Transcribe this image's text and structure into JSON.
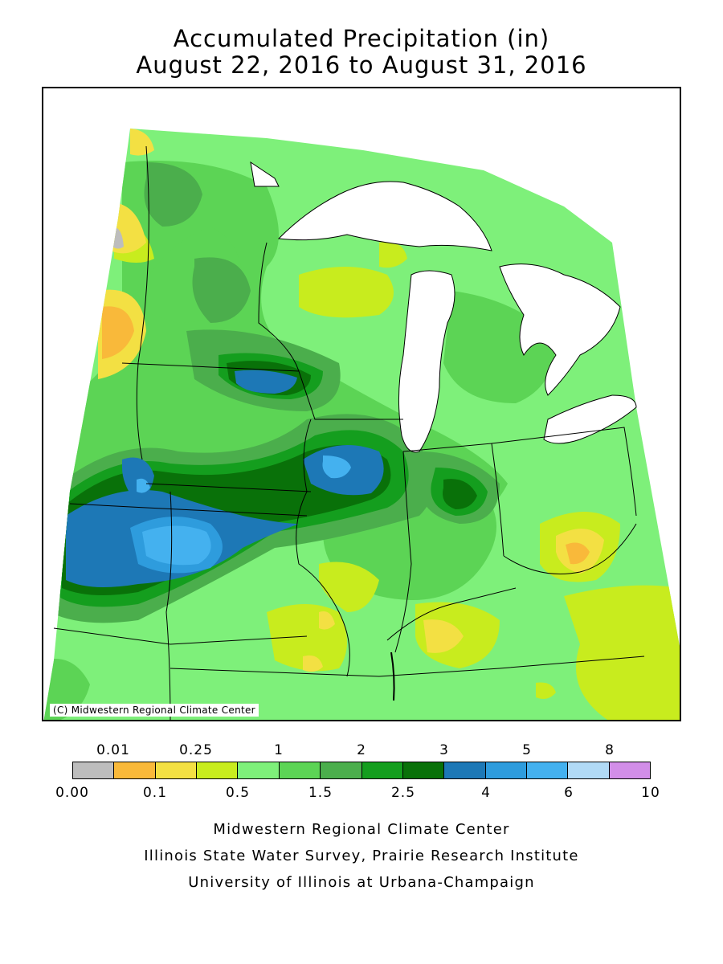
{
  "title": {
    "line1": "Accumulated Precipitation (in)",
    "line2": "August 22, 2016 to August 31, 2016"
  },
  "map": {
    "copyright": "(C) Midwestern Regional Climate Center",
    "colors": {
      "gray": "#bdbdbd",
      "orange": "#f9b93a",
      "yellow": "#f3e043",
      "yellow_green": "#c8ec1e",
      "light_green": "#7ef07a",
      "green": "#5cd455",
      "mid_green": "#4bae4c",
      "dark_green": "#149e1e",
      "darkest_green": "#097109",
      "dark_blue": "#1d78b6",
      "blue": "#2e9cdd",
      "light_blue": "#44b1ef",
      "pale_blue": "#b1daf6",
      "violet": "#d28ee8"
    }
  },
  "legend": {
    "top_labels": [
      "0.01",
      "0.25",
      "1",
      "2",
      "3",
      "5",
      "8"
    ],
    "bottom_labels": [
      "0.00",
      "0.1",
      "0.5",
      "1.5",
      "2.5",
      "4",
      "6",
      "10"
    ],
    "colors": [
      "#bdbdbd",
      "#f9b93a",
      "#f3e043",
      "#c8ec1e",
      "#7ef07a",
      "#5cd455",
      "#4bae4c",
      "#149e1e",
      "#097109",
      "#1d78b6",
      "#2e9cdd",
      "#44b1ef",
      "#b1daf6",
      "#d28ee8"
    ]
  },
  "credits": {
    "line1": "Midwestern Regional Climate Center",
    "line2": "Illinois State Water Survey, Prairie Research Institute",
    "line3": "University of Illinois at Urbana-Champaign"
  }
}
